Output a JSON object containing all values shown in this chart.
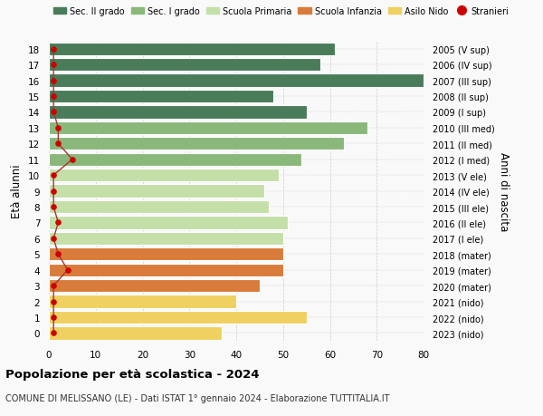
{
  "ages": [
    18,
    17,
    16,
    15,
    14,
    13,
    12,
    11,
    10,
    9,
    8,
    7,
    6,
    5,
    4,
    3,
    2,
    1,
    0
  ],
  "bar_values": [
    61,
    58,
    80,
    48,
    55,
    68,
    63,
    54,
    49,
    46,
    47,
    51,
    50,
    50,
    50,
    45,
    40,
    55,
    37
  ],
  "bar_colors": [
    "#4a7c59",
    "#4a7c59",
    "#4a7c59",
    "#4a7c59",
    "#4a7c59",
    "#8ab87a",
    "#8ab87a",
    "#8ab87a",
    "#c5dfa8",
    "#c5dfa8",
    "#c5dfa8",
    "#c5dfa8",
    "#c5dfa8",
    "#d97b3a",
    "#d97b3a",
    "#d97b3a",
    "#f0d060",
    "#f0d060",
    "#f0d060"
  ],
  "stranieri_values": [
    1,
    1,
    1,
    1,
    1,
    2,
    2,
    5,
    1,
    1,
    1,
    2,
    1,
    2,
    4,
    1,
    1,
    1,
    1
  ],
  "right_labels": [
    "2005 (V sup)",
    "2006 (IV sup)",
    "2007 (III sup)",
    "2008 (II sup)",
    "2009 (I sup)",
    "2010 (III med)",
    "2011 (II med)",
    "2012 (I med)",
    "2013 (V ele)",
    "2014 (IV ele)",
    "2015 (III ele)",
    "2016 (II ele)",
    "2017 (I ele)",
    "2018 (mater)",
    "2019 (mater)",
    "2020 (mater)",
    "2021 (nido)",
    "2022 (nido)",
    "2023 (nido)"
  ],
  "legend_labels": [
    "Sec. II grado",
    "Sec. I grado",
    "Scuola Primaria",
    "Scuola Infanzia",
    "Asilo Nido",
    "Stranieri"
  ],
  "legend_colors": [
    "#4a7c59",
    "#8ab87a",
    "#c5dfa8",
    "#d97b3a",
    "#f0d060",
    "#cc0000"
  ],
  "ylabel_left": "Età alunni",
  "ylabel_right": "Anni di nascita",
  "title": "Popolazione per età scolastica - 2024",
  "subtitle": "COMUNE DI MELISSANO (LE) - Dati ISTAT 1° gennaio 2024 - Elaborazione TUTTITALIA.IT",
  "xlim": [
    0,
    80
  ],
  "xticks": [
    0,
    10,
    20,
    30,
    40,
    50,
    60,
    70,
    80
  ],
  "background_color": "#f9f9f9",
  "bar_height": 0.82,
  "stranieri_color": "#cc0000",
  "stranieri_line_color": "#aa3333"
}
